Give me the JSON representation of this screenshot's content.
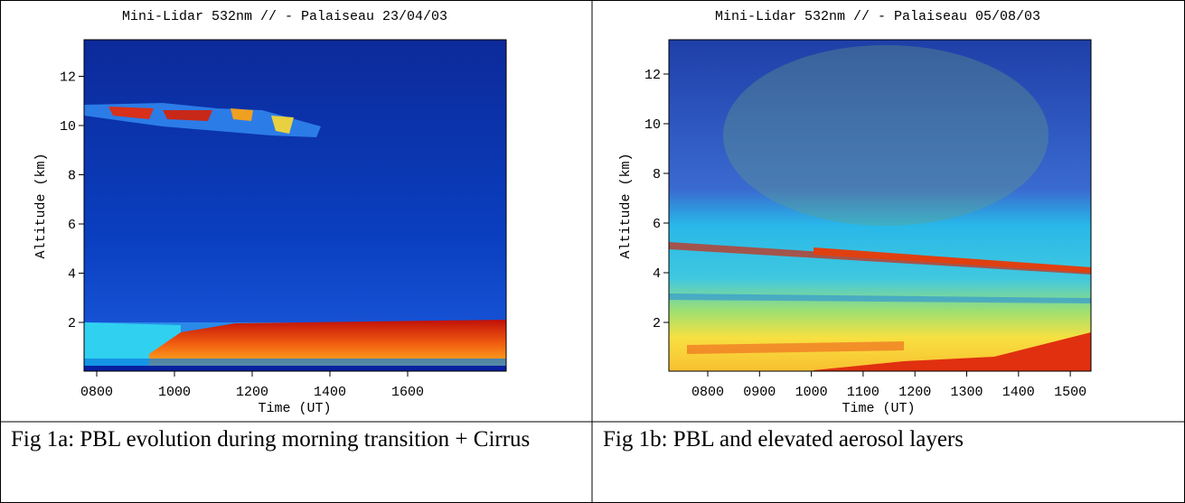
{
  "figures": [
    {
      "title": "Mini-Lidar  532nm // - Palaiseau 23/04/03",
      "y_label": "Altitude (km)",
      "x_label": "Time (UT)",
      "y_ticks": [
        "2",
        "4",
        "6",
        "8",
        "10",
        "12"
      ],
      "x_ticks": [
        "0800",
        "1000",
        "1200",
        "1400",
        "1600"
      ],
      "caption": "Fig 1a: PBL evolution  during morning transition + Cirrus"
    },
    {
      "title": "Mini-Lidar  532nm // - Palaiseau 05/08/03",
      "y_label": "Altitude (km)",
      "x_label": "Time (UT)",
      "y_ticks": [
        "2",
        "4",
        "6",
        "8",
        "10",
        "12"
      ],
      "x_ticks": [
        "0800",
        "0900",
        "1000",
        "1100",
        "1200",
        "1300",
        "1400",
        "1500"
      ],
      "caption": "Fig 1b: PBL and elevated aerosol layers"
    }
  ]
}
